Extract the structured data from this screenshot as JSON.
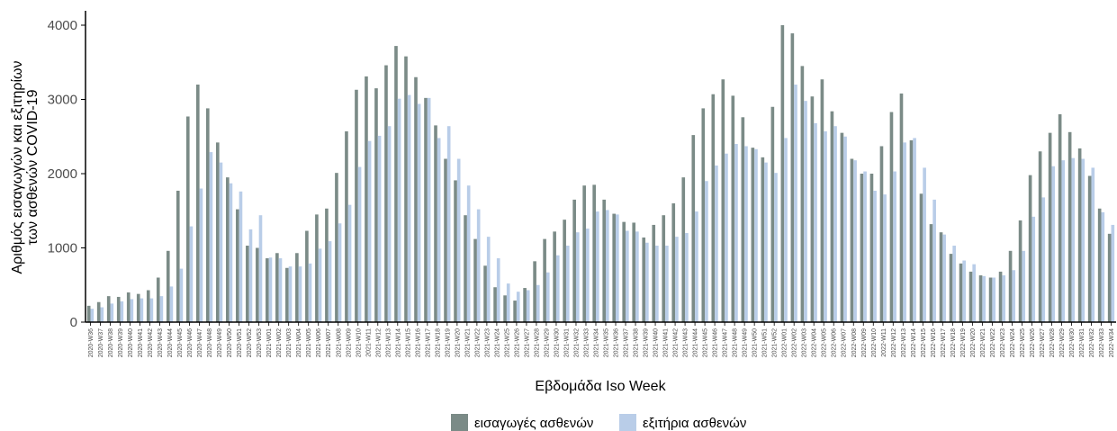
{
  "chart_data": {
    "type": "bar",
    "xlabel": "Εβδομάδα Iso Week",
    "ylabel_line1": "Αριθμός εισαγωγών και εξιτηρίων",
    "ylabel_line2": "των ασθενών COVID-19",
    "ylim": [
      0,
      4200
    ],
    "yticks": [
      0,
      1000,
      2000,
      3000,
      4000
    ],
    "ytick_labels": [
      "0",
      "1000",
      "2000",
      "3000",
      "4000"
    ],
    "grid": false,
    "legend_position": "bottom",
    "categories": [
      "2020-W36",
      "2020-W37",
      "2020-W38",
      "2020-W39",
      "2020-W40",
      "2020-W41",
      "2020-W42",
      "2020-W43",
      "2020-W44",
      "2020-W45",
      "2020-W46",
      "2020-W47",
      "2020-W48",
      "2020-W49",
      "2020-W50",
      "2020-W51",
      "2020-W52",
      "2020-W53",
      "2021-W01",
      "2021-W02",
      "2021-W03",
      "2021-W04",
      "2021-W05",
      "2021-W06",
      "2021-W07",
      "2021-W08",
      "2021-W09",
      "2021-W10",
      "2021-W11",
      "2021-W12",
      "2021-W13",
      "2021-W14",
      "2021-W15",
      "2021-W16",
      "2021-W17",
      "2021-W18",
      "2021-W19",
      "2021-W20",
      "2021-W21",
      "2021-W22",
      "2021-W23",
      "2021-W24",
      "2021-W25",
      "2021-W26",
      "2021-W27",
      "2021-W28",
      "2021-W29",
      "2021-W30",
      "2021-W31",
      "2021-W32",
      "2021-W33",
      "2021-W34",
      "2021-W35",
      "2021-W36",
      "2021-W37",
      "2021-W38",
      "2021-W39",
      "2021-W40",
      "2021-W41",
      "2021-W42",
      "2021-W43",
      "2021-W44",
      "2021-W45",
      "2021-W46",
      "2021-W47",
      "2021-W48",
      "2021-W49",
      "2021-W50",
      "2021-W51",
      "2021-W52",
      "2022-W01",
      "2022-W02",
      "2022-W03",
      "2022-W04",
      "2022-W05",
      "2022-W06",
      "2022-W07",
      "2022-W08",
      "2022-W09",
      "2022-W10",
      "2022-W11",
      "2022-W12",
      "2022-W13",
      "2022-W14",
      "2022-W15",
      "2022-W16",
      "2022-W17",
      "2022-W18",
      "2022-W19",
      "2022-W20",
      "2022-W21",
      "2022-W22",
      "2022-W23",
      "2022-W24",
      "2022-W25",
      "2022-W26",
      "2022-W27",
      "2022-W28",
      "2022-W29",
      "2022-W30",
      "2022-W31",
      "2022-W32",
      "2022-W33",
      "2022-W34"
    ],
    "series": [
      {
        "name": "εισαγωγές ασθενών",
        "color": "#7b8b87",
        "values": [
          220,
          270,
          350,
          340,
          400,
          380,
          430,
          600,
          960,
          1770,
          2770,
          3200,
          2880,
          2420,
          1950,
          1520,
          1030,
          1000,
          860,
          930,
          730,
          930,
          1230,
          1450,
          1530,
          2010,
          2570,
          3130,
          3310,
          3150,
          3460,
          3720,
          3580,
          3300,
          3020,
          2650,
          2200,
          1910,
          1440,
          1120,
          760,
          470,
          360,
          290,
          460,
          820,
          1120,
          1220,
          1380,
          1650,
          1840,
          1850,
          1650,
          1460,
          1350,
          1340,
          1140,
          1310,
          1440,
          1600,
          1950,
          2520,
          2880,
          3070,
          3270,
          3050,
          2760,
          2350,
          2220,
          2900,
          4000,
          3890,
          3450,
          3040,
          3270,
          2840,
          2550,
          2200,
          2000,
          2000,
          2370,
          2830,
          3080,
          2450,
          1730,
          1320,
          1210,
          920,
          790,
          680,
          630,
          600,
          680,
          960,
          1370,
          1980,
          2300,
          2550,
          2800,
          2560,
          2340,
          1970,
          1530,
          1190
        ]
      },
      {
        "name": "εξιτήρια ασθενών",
        "color": "#b9cde8",
        "values": [
          180,
          200,
          250,
          280,
          310,
          320,
          320,
          350,
          480,
          720,
          1290,
          1800,
          2290,
          2150,
          1870,
          1760,
          1250,
          1440,
          870,
          860,
          750,
          750,
          790,
          990,
          1090,
          1330,
          1580,
          2090,
          2440,
          2510,
          2640,
          3010,
          3060,
          2940,
          3020,
          2480,
          2640,
          2200,
          1840,
          1520,
          1150,
          860,
          520,
          410,
          430,
          500,
          670,
          900,
          1030,
          1210,
          1260,
          1490,
          1510,
          1450,
          1230,
          1220,
          1070,
          1030,
          1030,
          1150,
          1200,
          1490,
          1900,
          2110,
          2270,
          2400,
          2370,
          2330,
          2150,
          2010,
          2480,
          3200,
          2980,
          2680,
          2570,
          2640,
          2500,
          2180,
          2030,
          1770,
          1720,
          2030,
          2420,
          2480,
          2080,
          1650,
          1180,
          1030,
          830,
          780,
          620,
          600,
          630,
          700,
          960,
          1420,
          1680,
          2100,
          2180,
          2210,
          2200,
          2080,
          1480,
          1310
        ]
      }
    ]
  }
}
